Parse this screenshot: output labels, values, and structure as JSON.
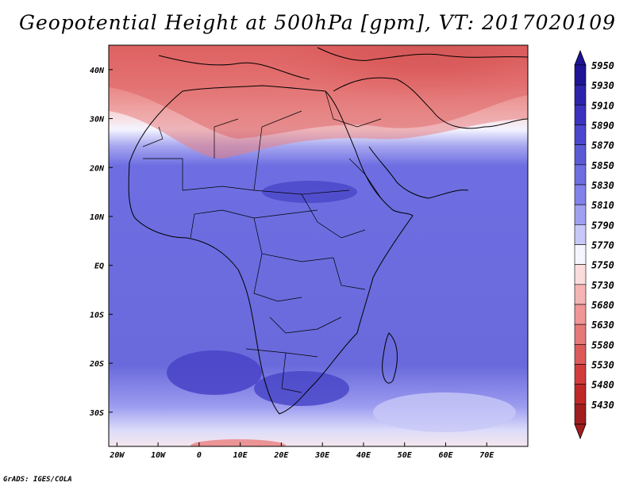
{
  "title": "Geopotential Height at 500hPa [gpm], VT: 2017020109",
  "credit": "GrADS: IGES/COLA",
  "map": {
    "lon_labels": [
      "20W",
      "10W",
      "0",
      "10E",
      "20E",
      "30E",
      "40E",
      "50E",
      "60E",
      "70E"
    ],
    "lat_labels": [
      "40N",
      "30N",
      "20N",
      "10N",
      "EQ",
      "10S",
      "20S",
      "30S"
    ],
    "lon_range": [
      -22,
      80
    ],
    "lat_range": [
      -37,
      45
    ]
  },
  "colorbar": {
    "levels": [
      "5950",
      "5930",
      "5910",
      "5890",
      "5870",
      "5850",
      "5830",
      "5810",
      "5790",
      "5770",
      "5750",
      "5730",
      "5680",
      "5630",
      "5580",
      "5530",
      "5480",
      "5430"
    ],
    "colors": [
      "#1e1496",
      "#2d23aa",
      "#3c32be",
      "#4b46cd",
      "#5a5ad7",
      "#6e6ee1",
      "#8282eb",
      "#a0a0f0",
      "#c8c8f8",
      "#f5f5ff",
      "#fadcdc",
      "#f5b4b4",
      "#f09696",
      "#e67878",
      "#dc5a5a",
      "#d23c3c",
      "#be2828",
      "#a01e1e"
    ]
  },
  "colors": {
    "ocean_blue": "#7474e6",
    "land_blue": "#6464d8",
    "deep_blue": "#4a46c8",
    "white_band": "#f4f4ff",
    "red_light": "#f0a0a0",
    "red_mid": "#e06464",
    "red_dark": "#b42828"
  }
}
